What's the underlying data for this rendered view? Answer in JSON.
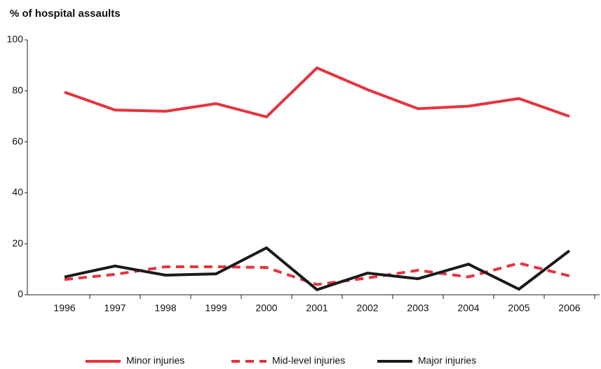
{
  "chart_data": {
    "type": "line",
    "title": "% of hospital assaults",
    "categories": [
      "1996",
      "1997",
      "1998",
      "1999",
      "2000",
      "2001",
      "2002",
      "2003",
      "2004",
      "2005",
      "2006"
    ],
    "series": [
      {
        "name": "Minor injuries",
        "color": "#e5343d",
        "line_style": "solid",
        "values": [
          79.5,
          72.5,
          72,
          75,
          69.8,
          89,
          80.5,
          73,
          74,
          77,
          70
        ]
      },
      {
        "name": "Mid-level injuries",
        "color": "#e5343d",
        "line_style": "dashed",
        "values": [
          6,
          8,
          11,
          11,
          10.7,
          4,
          6.6,
          9.6,
          7,
          12.4,
          7.4
        ]
      },
      {
        "name": "Major injuries",
        "color": "#1a1a1a",
        "line_style": "solid",
        "values": [
          7,
          11.3,
          7.7,
          8.2,
          18.4,
          2,
          8.5,
          6.3,
          12,
          2.2,
          17.3
        ]
      }
    ],
    "ylim": [
      0,
      100
    ],
    "yticks": [
      0,
      20,
      40,
      60,
      80,
      100
    ],
    "grid": false,
    "legend": "bottom"
  }
}
